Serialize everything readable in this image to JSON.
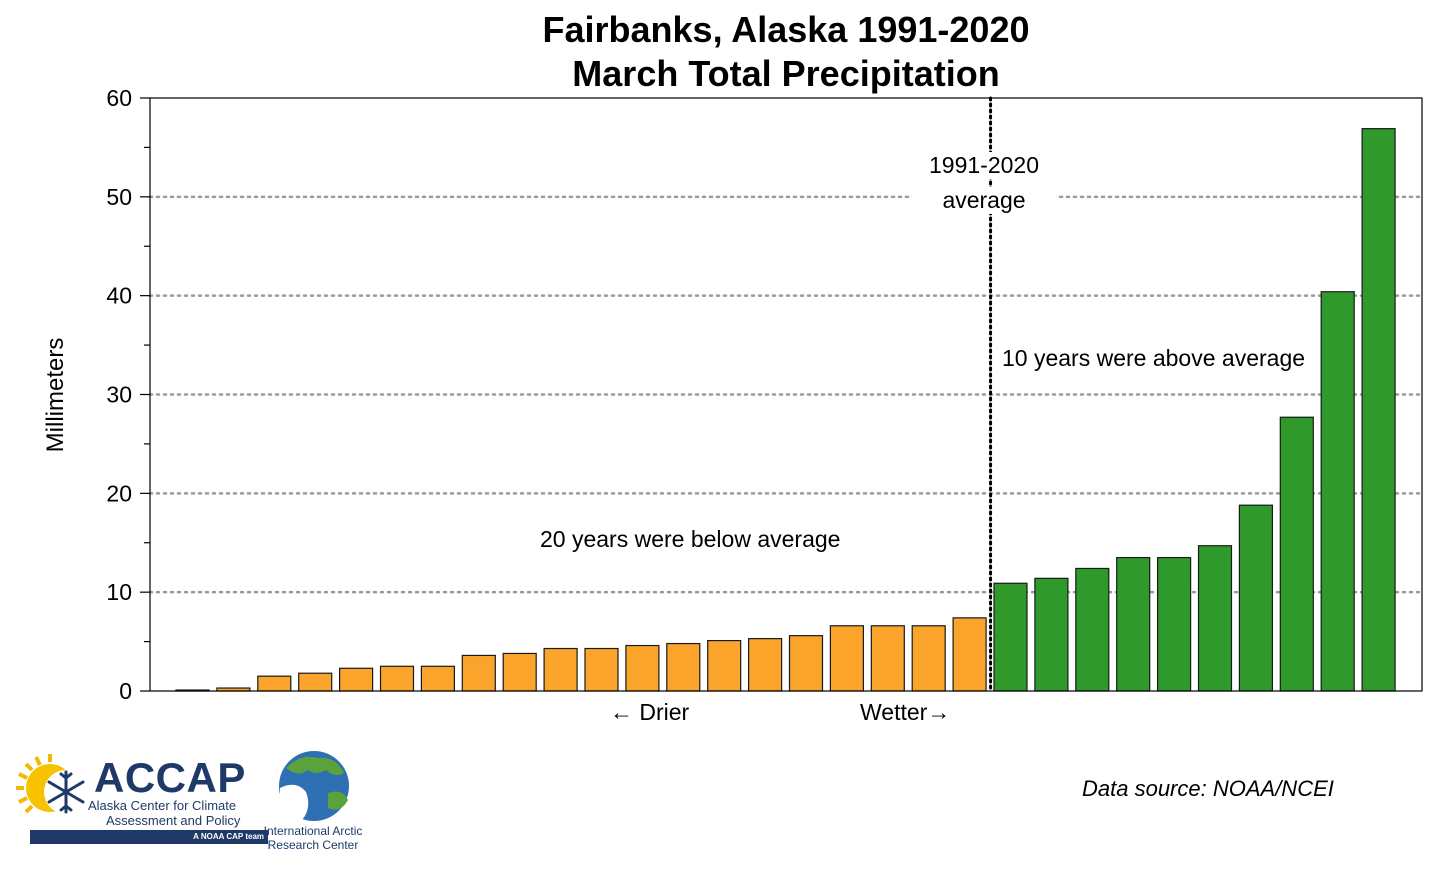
{
  "chart_data": {
    "type": "bar",
    "title": "Fairbanks, Alaska 1991-2020",
    "subtitle": "March Total Precipitation",
    "ylabel": "Millimeters",
    "ylim": [
      0,
      60
    ],
    "yticks": [
      0,
      10,
      20,
      30,
      40,
      50,
      60
    ],
    "grid": "horizontal-dotted",
    "average_label": [
      "1991-2020",
      "average"
    ],
    "series": [
      {
        "name": "Below average",
        "color": "#fba42b",
        "values": [
          0.1,
          0.3,
          1.5,
          1.8,
          2.3,
          2.5,
          2.5,
          3.6,
          3.8,
          4.3,
          4.3,
          4.6,
          4.8,
          5.1,
          5.3,
          5.6,
          6.6,
          6.6,
          6.6,
          7.4
        ]
      },
      {
        "name": "Above average",
        "color": "#2f9a2b",
        "values": [
          10.9,
          11.4,
          12.4,
          13.5,
          13.5,
          14.7,
          18.8,
          27.7,
          40.4,
          56.9
        ]
      }
    ],
    "annotations": {
      "below": "20 years were below average",
      "above": "10 years were above average",
      "drier": "← Drier",
      "wetter": "Wetter→"
    }
  },
  "footer": {
    "source": "Data source: NOAA/NCEI",
    "accap": {
      "name": "ACCAP",
      "line1": "Alaska Center for Climate",
      "line2": "Assessment and Policy",
      "tag": "A NOAA CAP team"
    },
    "iarc": {
      "line1": "International Arctic",
      "line2": "Research Center"
    }
  }
}
